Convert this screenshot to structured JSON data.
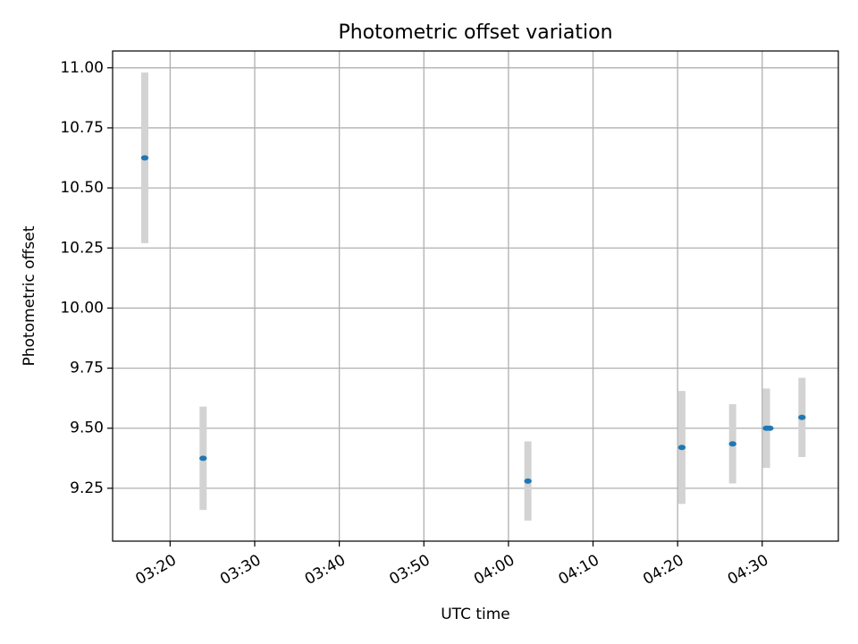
{
  "chart_data": {
    "type": "scatter",
    "title": "Photometric offset variation",
    "xlabel": "UTC time",
    "ylabel": "Photometric offset",
    "grid": true,
    "xlim_minutes": [
      193.2,
      279.0
    ],
    "ylim": [
      9.03,
      11.07
    ],
    "x_ticks": [
      {
        "label": "03:20",
        "minutes": 200
      },
      {
        "label": "03:30",
        "minutes": 210
      },
      {
        "label": "03:40",
        "minutes": 220
      },
      {
        "label": "03:50",
        "minutes": 230
      },
      {
        "label": "04:00",
        "minutes": 240
      },
      {
        "label": "04:10",
        "minutes": 250
      },
      {
        "label": "04:20",
        "minutes": 260
      },
      {
        "label": "04:30",
        "minutes": 270
      }
    ],
    "y_ticks": [
      {
        "label": "9.25",
        "value": 9.25
      },
      {
        "label": "9.50",
        "value": 9.5
      },
      {
        "label": "9.75",
        "value": 9.75
      },
      {
        "label": "10.00",
        "value": 10.0
      },
      {
        "label": "10.25",
        "value": 10.25
      },
      {
        "label": "10.50",
        "value": 10.5
      },
      {
        "label": "10.75",
        "value": 10.75
      },
      {
        "label": "11.00",
        "value": 11.0
      }
    ],
    "points": [
      {
        "time": "03:17.0",
        "minutes": 197.0,
        "value": 10.625,
        "err": 0.355
      },
      {
        "time": "03:23.9",
        "minutes": 203.9,
        "value": 9.375,
        "err": 0.215
      },
      {
        "time": "04:02.3",
        "minutes": 242.3,
        "value": 9.28,
        "err": 0.165
      },
      {
        "time": "04:20.5",
        "minutes": 260.5,
        "value": 9.42,
        "err": 0.235
      },
      {
        "time": "04:26.5",
        "minutes": 266.5,
        "value": 9.435,
        "err": 0.165
      },
      {
        "time": "04:30.5",
        "minutes": 270.5,
        "value": 9.5,
        "err": 0.165
      },
      {
        "time": "04:30.9",
        "minutes": 270.9,
        "value": 9.5,
        "err": 0.0
      },
      {
        "time": "04:34.7",
        "minutes": 274.7,
        "value": 9.545,
        "err": 0.165
      }
    ],
    "colors": {
      "marker": "#1f77b4",
      "errorbar": "#d3d3d3",
      "grid": "#b0b0b0"
    }
  }
}
